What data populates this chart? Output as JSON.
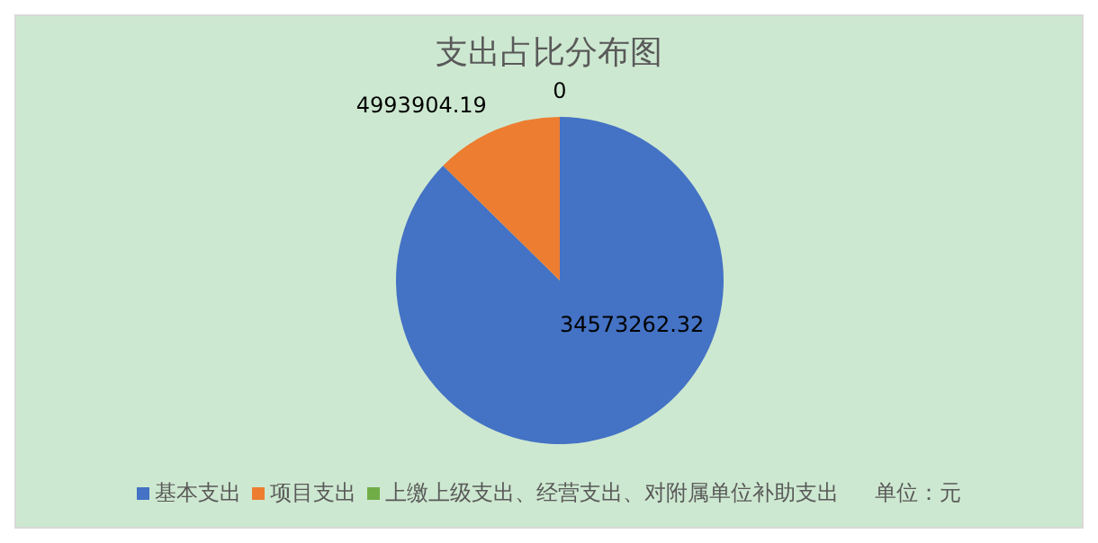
{
  "chart_data": {
    "type": "pie",
    "title": "支出占比分布图",
    "categories": [
      "基本支出",
      "项目支出",
      "上缴上级支出、经营支出、对附属单位补助支出"
    ],
    "values": [
      34573262.32,
      4993904.19,
      0
    ],
    "colors": [
      "#4472c4",
      "#ed7d31",
      "#70ad47"
    ],
    "value_labels": [
      "34573262.32",
      "4993904.19",
      "0"
    ],
    "legend": "bottom",
    "annotations": [
      "单位：元"
    ]
  }
}
